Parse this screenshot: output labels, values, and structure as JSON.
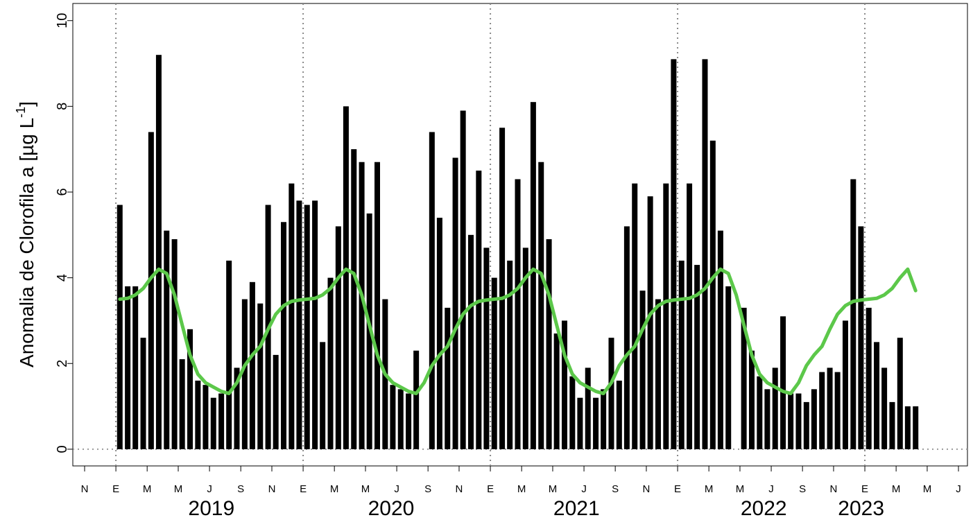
{
  "chart_data": {
    "type": "bar_line",
    "ylabel": "Anomalia de Clorofila a [µg L",
    "ylabel_superscript": "-1",
    "ylabel_end": "]",
    "x": [
      2019.021,
      2019.063,
      2019.104,
      2019.146,
      2019.188,
      2019.229,
      2019.271,
      2019.313,
      2019.354,
      2019.396,
      2019.438,
      2019.479,
      2019.521,
      2019.563,
      2019.604,
      2019.646,
      2019.688,
      2019.729,
      2019.771,
      2019.813,
      2019.854,
      2019.896,
      2019.938,
      2019.979,
      2020.021,
      2020.063,
      2020.104,
      2020.146,
      2020.188,
      2020.229,
      2020.271,
      2020.313,
      2020.354,
      2020.396,
      2020.438,
      2020.479,
      2020.521,
      2020.563,
      2020.604,
      2020.646,
      2020.688,
      2020.729,
      2020.771,
      2020.813,
      2020.854,
      2020.896,
      2020.938,
      2020.979,
      2021.021,
      2021.063,
      2021.104,
      2021.146,
      2021.188,
      2021.229,
      2021.271,
      2021.313,
      2021.354,
      2021.396,
      2021.438,
      2021.479,
      2021.521,
      2021.563,
      2021.604,
      2021.646,
      2021.688,
      2021.729,
      2021.771,
      2021.813,
      2021.854,
      2021.896,
      2021.938,
      2021.979,
      2022.021,
      2022.063,
      2022.104,
      2022.146,
      2022.188,
      2022.229,
      2022.271,
      2022.313,
      2022.354,
      2022.396,
      2022.438,
      2022.479,
      2022.521,
      2022.563,
      2022.604,
      2022.646,
      2022.688,
      2022.729,
      2022.771,
      2022.813,
      2022.854,
      2022.896,
      2022.938,
      2022.979,
      2023.021,
      2023.063,
      2023.104,
      2023.146,
      2023.188,
      2023.229,
      2023.271
    ],
    "series": [
      {
        "type": "bar",
        "color": "#000000",
        "values": [
          5.7,
          3.8,
          3.8,
          2.6,
          7.4,
          9.2,
          5.1,
          4.9,
          2.1,
          2.8,
          1.6,
          1.5,
          1.2,
          1.3,
          4.4,
          1.9,
          3.5,
          3.9,
          3.4,
          5.7,
          2.2,
          5.3,
          6.2,
          5.8,
          5.7,
          5.8,
          2.5,
          4.0,
          5.2,
          8.0,
          7.0,
          6.7,
          5.5,
          6.7,
          3.5,
          1.5,
          1.4,
          1.3,
          2.3,
          null,
          7.4,
          5.4,
          3.3,
          6.8,
          7.9,
          5.0,
          6.5,
          4.7,
          4.0,
          7.5,
          4.4,
          6.3,
          4.7,
          8.1,
          6.7,
          4.9,
          2.7,
          3.0,
          1.7,
          1.2,
          1.9,
          1.2,
          1.4,
          2.6,
          1.6,
          5.2,
          6.2,
          3.7,
          5.9,
          3.5,
          6.2,
          9.1,
          4.4,
          6.2,
          4.3,
          9.1,
          7.2,
          5.1,
          3.8,
          null,
          3.3,
          2.3,
          1.7,
          1.4,
          1.9,
          3.1,
          1.3,
          1.3,
          1.1,
          1.4,
          1.8,
          1.9,
          1.8,
          3.0,
          6.3,
          5.2,
          3.3,
          2.5,
          1.9,
          1.1,
          2.6,
          1.0,
          1.0
        ]
      },
      {
        "type": "line",
        "color": "#5cc84a",
        "values": [
          3.5,
          3.52,
          3.6,
          3.75,
          4.0,
          4.2,
          4.1,
          3.6,
          2.9,
          2.2,
          1.75,
          1.55,
          1.45,
          1.35,
          1.3,
          1.55,
          1.95,
          2.2,
          2.4,
          2.8,
          3.15,
          3.35,
          3.45,
          3.48,
          3.5,
          3.52,
          3.6,
          3.75,
          4.0,
          4.2,
          4.1,
          3.6,
          2.9,
          2.2,
          1.75,
          1.55,
          1.45,
          1.35,
          1.3,
          1.55,
          1.95,
          2.2,
          2.4,
          2.8,
          3.15,
          3.35,
          3.45,
          3.48,
          3.5,
          3.52,
          3.6,
          3.75,
          4.0,
          4.2,
          4.1,
          3.6,
          2.9,
          2.2,
          1.75,
          1.55,
          1.45,
          1.35,
          1.3,
          1.55,
          1.95,
          2.2,
          2.4,
          2.8,
          3.15,
          3.35,
          3.45,
          3.48,
          3.5,
          3.52,
          3.6,
          3.75,
          4.0,
          4.2,
          4.1,
          3.6,
          2.9,
          2.2,
          1.75,
          1.55,
          1.45,
          1.35,
          1.3,
          1.55,
          1.95,
          2.2,
          2.4,
          2.8,
          3.15,
          3.35,
          3.45,
          3.48,
          3.5,
          3.52,
          3.6,
          3.75,
          4.0,
          4.2,
          3.7
        ]
      }
    ],
    "xlim": [
      2018.77,
      2023.548
    ],
    "ylim": [
      -0.39,
      10.4
    ],
    "yticks": [
      0,
      2,
      4,
      6,
      8,
      10
    ],
    "xticks": [
      {
        "value": 2018.833,
        "label": "N"
      },
      {
        "value": 2019,
        "label": "E"
      },
      {
        "value": 2019.167,
        "label": "M"
      },
      {
        "value": 2019.333,
        "label": "M"
      },
      {
        "value": 2019.5,
        "label": "J"
      },
      {
        "value": 2019.667,
        "label": "S"
      },
      {
        "value": 2019.833,
        "label": "N"
      },
      {
        "value": 2020,
        "label": "E"
      },
      {
        "value": 2020.167,
        "label": "M"
      },
      {
        "value": 2020.333,
        "label": "M"
      },
      {
        "value": 2020.5,
        "label": "J"
      },
      {
        "value": 2020.667,
        "label": "S"
      },
      {
        "value": 2020.833,
        "label": "N"
      },
      {
        "value": 2021,
        "label": "E"
      },
      {
        "value": 2021.167,
        "label": "M"
      },
      {
        "value": 2021.333,
        "label": "M"
      },
      {
        "value": 2021.5,
        "label": "J"
      },
      {
        "value": 2021.667,
        "label": "S"
      },
      {
        "value": 2021.833,
        "label": "N"
      },
      {
        "value": 2022,
        "label": "E"
      },
      {
        "value": 2022.167,
        "label": "M"
      },
      {
        "value": 2022.333,
        "label": "M"
      },
      {
        "value": 2022.5,
        "label": "J"
      },
      {
        "value": 2022.667,
        "label": "S"
      },
      {
        "value": 2022.833,
        "label": "N"
      },
      {
        "value": 2023,
        "label": "E"
      },
      {
        "value": 2023.167,
        "label": "M"
      },
      {
        "value": 2023.333,
        "label": "M"
      },
      {
        "value": 2023.5,
        "label": "J"
      }
    ],
    "year_ticks": [
      {
        "value": 2019.51,
        "label": "2019"
      },
      {
        "value": 2020.47,
        "label": "2020"
      },
      {
        "value": 2021.46,
        "label": "2021"
      },
      {
        "value": 2022.46,
        "label": "2022"
      },
      {
        "value": 2022.98,
        "label": "2023"
      }
    ],
    "vlines": [
      2019,
      2020,
      2021,
      2022,
      2023
    ],
    "hline": 0
  }
}
